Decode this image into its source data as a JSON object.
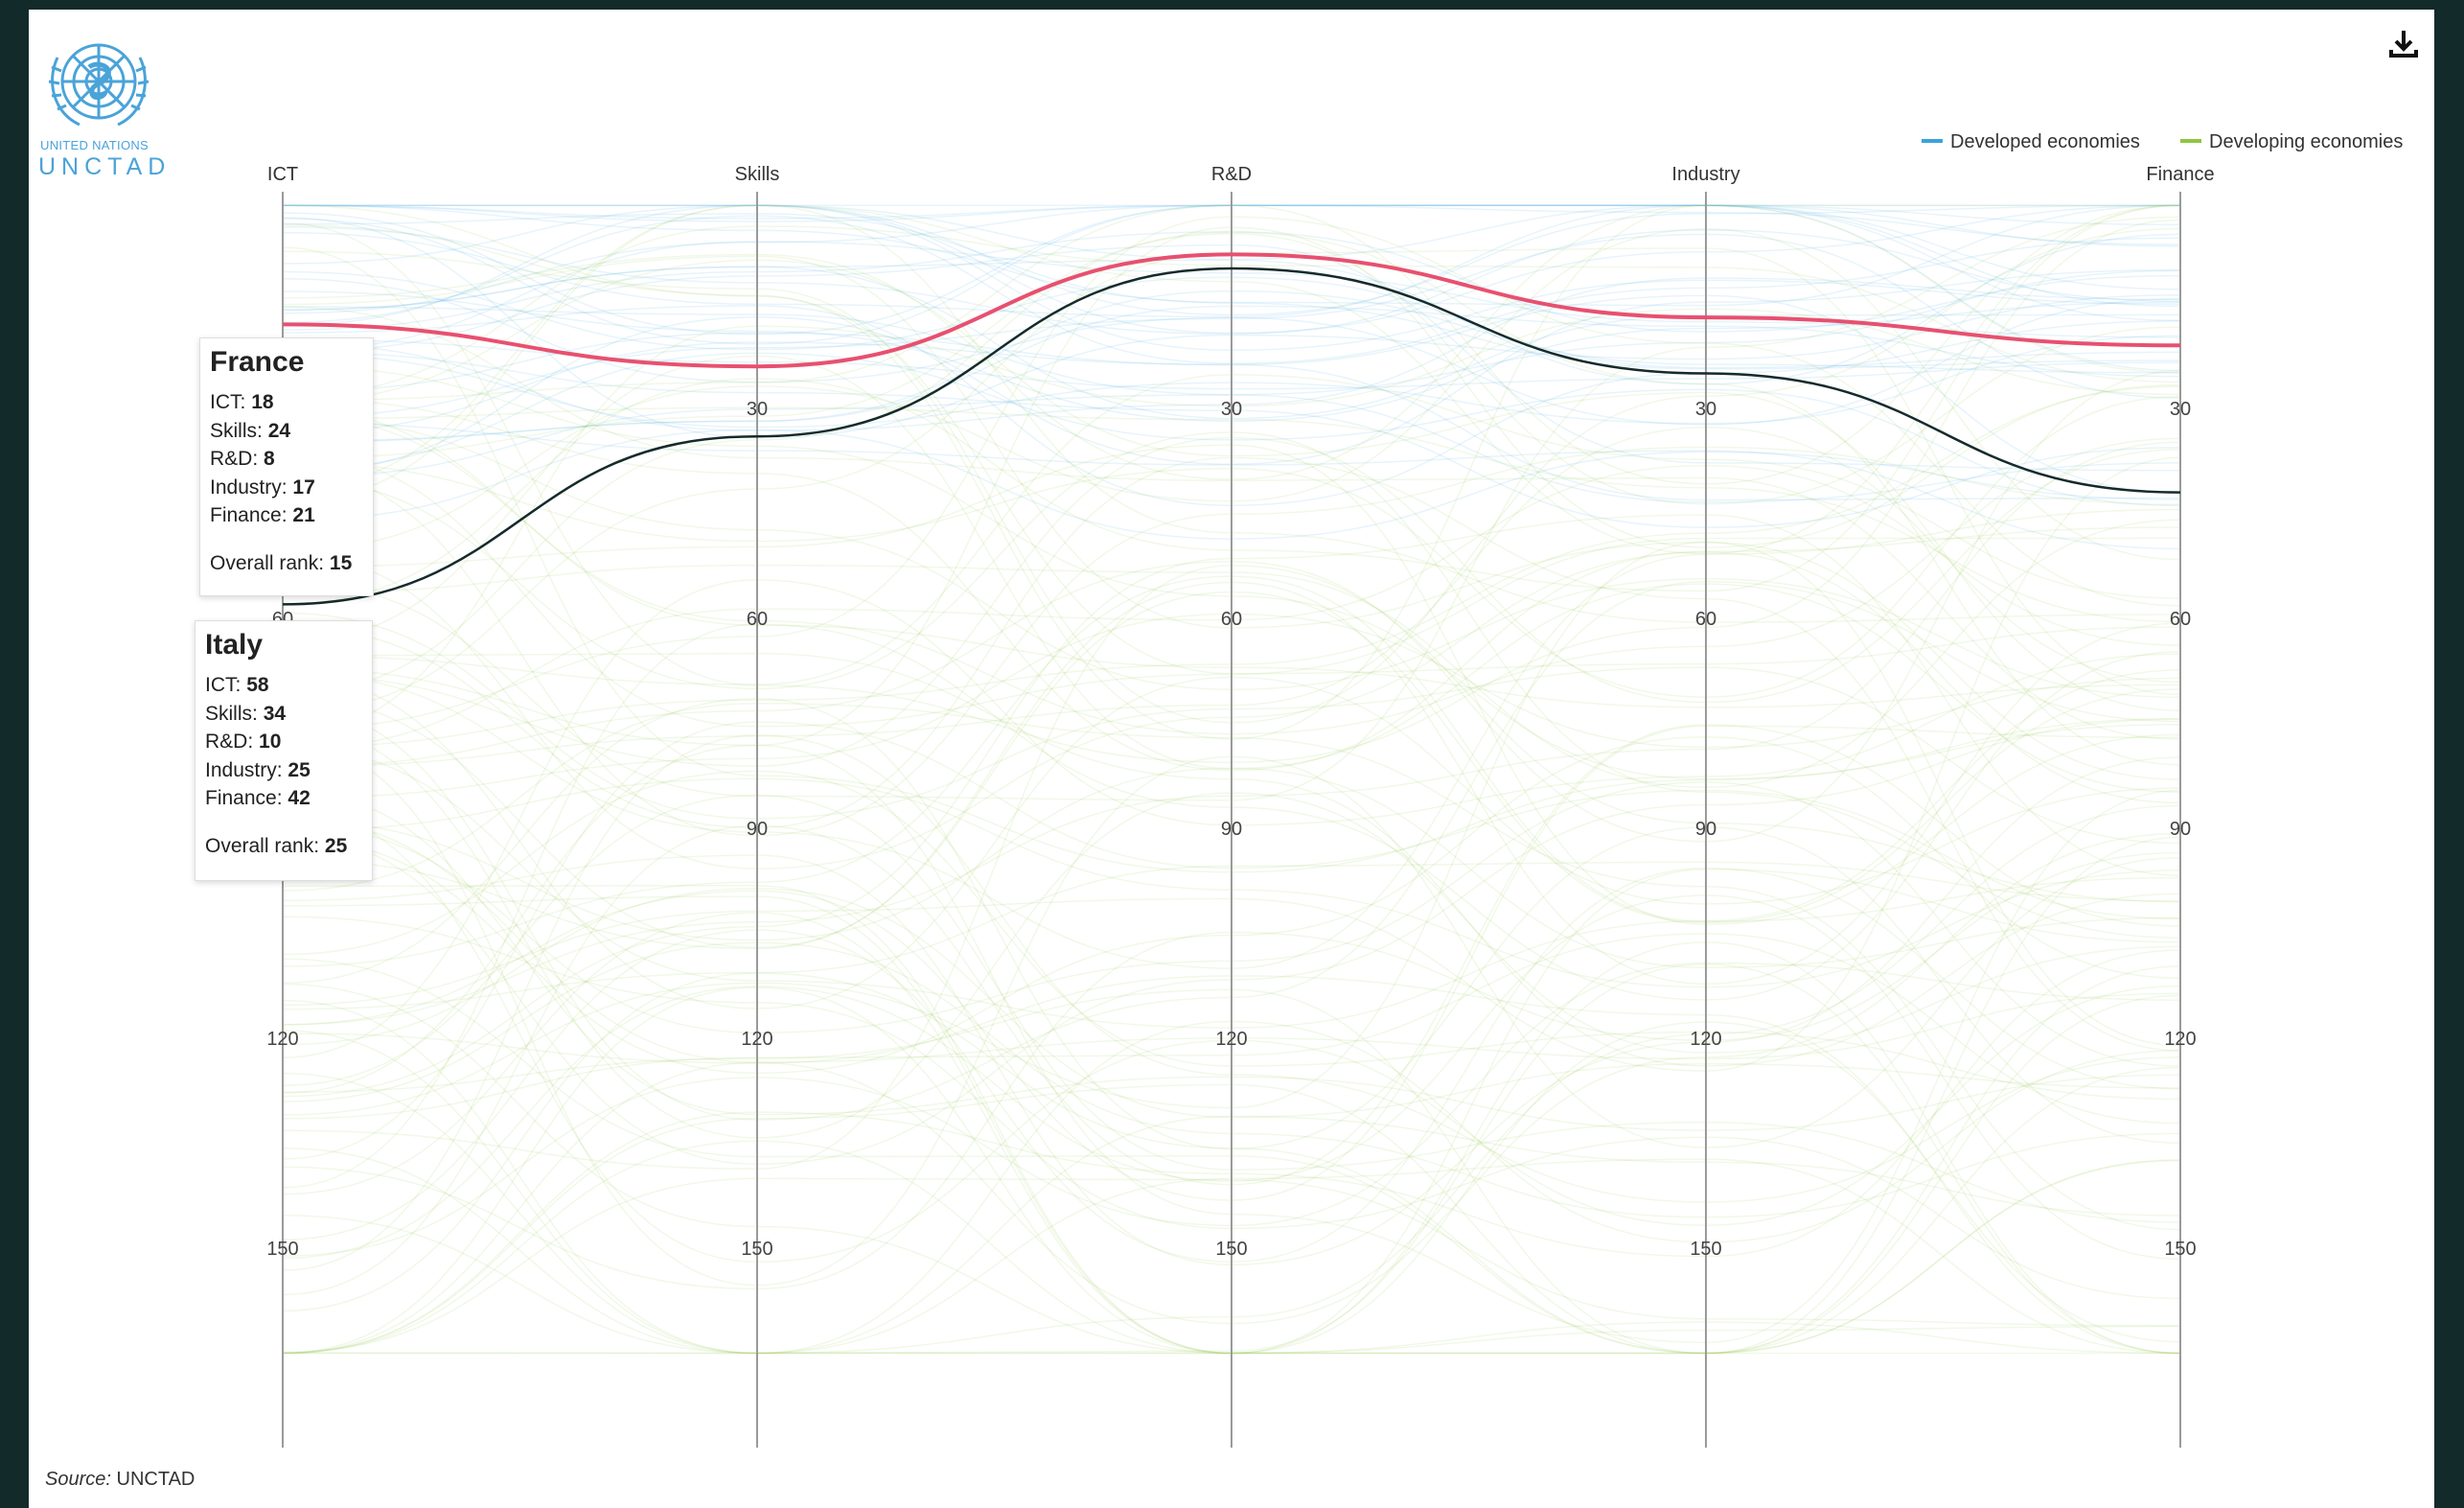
{
  "logo": {
    "line1": "UNITED NATIONS",
    "line2": "UNCTAD"
  },
  "toolbar": {
    "download_icon": "download-icon"
  },
  "colors": {
    "developed": "#3aa3dc",
    "developing": "#8dc63f",
    "france": "#e8506f",
    "italy": "#152a2b",
    "axis": "#9a9a9a"
  },
  "chart_data": {
    "type": "parallel-coordinates",
    "axes": [
      "ICT",
      "Skills",
      "R&D",
      "Industry",
      "Finance"
    ],
    "ticks": [
      30,
      60,
      90,
      120,
      150
    ],
    "yrange": [
      0,
      166
    ],
    "inverted": true,
    "legend": {
      "position": "top-right",
      "items": [
        "Developed economies",
        "Developing economies"
      ]
    },
    "highlighted": [
      {
        "name": "France",
        "values": {
          "ICT": 18,
          "Skills": 24,
          "R&D": 8,
          "Industry": 17,
          "Finance": 21
        },
        "overall_rank": 15,
        "labels": {
          "ict": "ICT:",
          "skills": "Skills:",
          "rd": "R&D:",
          "industry": "Industry:",
          "finance": "Finance:",
          "overall": "Overall rank:"
        }
      },
      {
        "name": "Italy",
        "values": {
          "ICT": 58,
          "Skills": 34,
          "R&D": 10,
          "Industry": 25,
          "Finance": 42
        },
        "overall_rank": 25,
        "labels": {
          "ict": "ICT:",
          "skills": "Skills:",
          "rd": "R&D:",
          "industry": "Industry:",
          "finance": "Finance:",
          "overall": "Overall rank:"
        }
      }
    ]
  },
  "source": {
    "label": "Source:",
    "value": "UNCTAD"
  }
}
